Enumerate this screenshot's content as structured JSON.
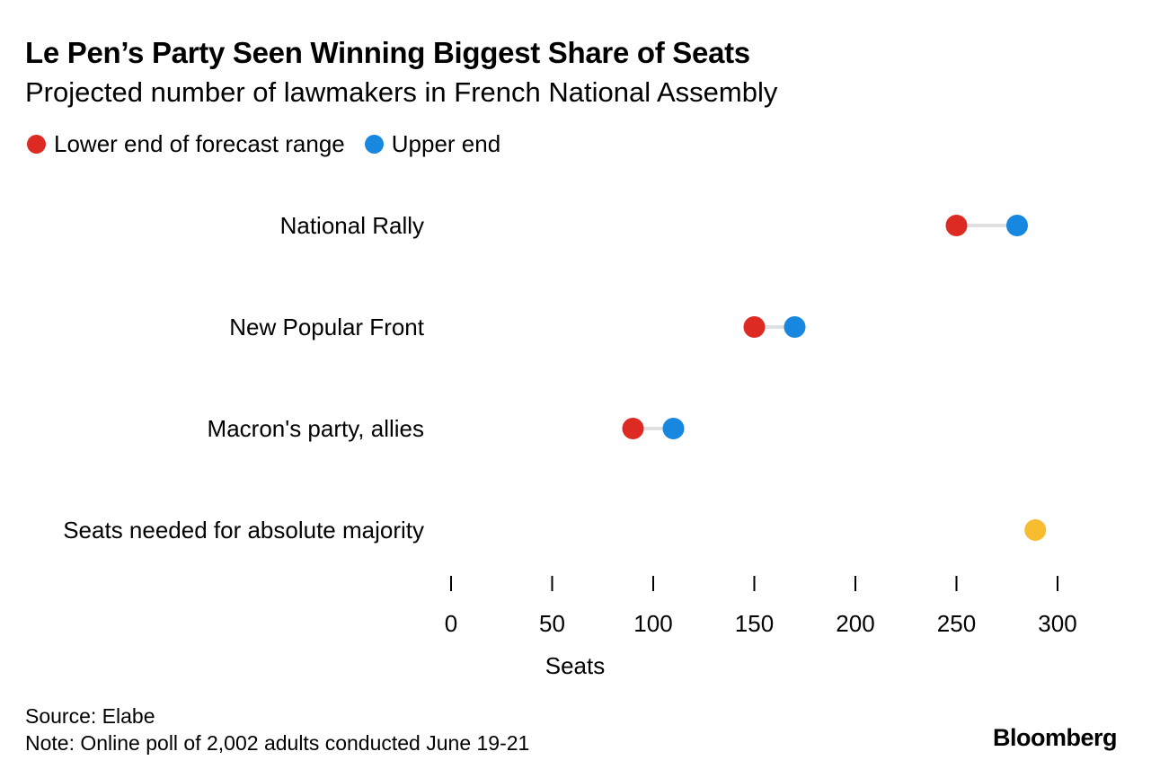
{
  "chart_data": {
    "type": "dot-range",
    "title": "Le Pen’s Party Seen Winning Biggest Share of Seats",
    "subtitle": "Projected number of lawmakers in French National Assembly",
    "legend": [
      {
        "name": "Lower end of forecast range",
        "color": "#dd2b24"
      },
      {
        "name": "Upper end",
        "color": "#1787df"
      }
    ],
    "categories": [
      "National Rally",
      "New Popular Front",
      "Macron's party, allies",
      "Seats needed for absolute majority"
    ],
    "series": [
      {
        "name": "Lower end of forecast range",
        "color": "#dd2b24",
        "values": [
          250,
          150,
          90,
          null
        ]
      },
      {
        "name": "Upper end",
        "color": "#1787df",
        "values": [
          280,
          170,
          110,
          null
        ]
      }
    ],
    "majority": {
      "category": "Seats needed for absolute majority",
      "value": 289,
      "color": "#f8bc31"
    },
    "xlabel": "Seats",
    "xticks": [
      0,
      50,
      100,
      150,
      200,
      250,
      300
    ],
    "xlim": [
      0,
      300
    ],
    "connector_color": "#e0e0e0",
    "grid": false,
    "legend_position": "top-left"
  },
  "footer": {
    "source": "Source: Elabe",
    "note": "Note: Online poll of 2,002 adults conducted June 19-21"
  },
  "brand": "Bloomberg"
}
